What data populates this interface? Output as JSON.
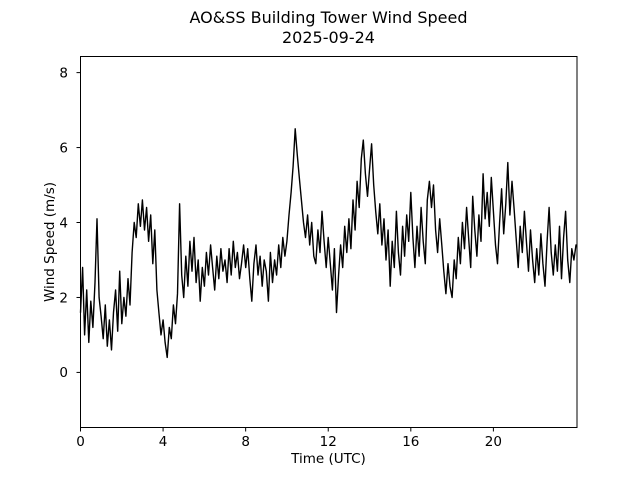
{
  "background": "#ffffff",
  "chart_data": {
    "type": "line",
    "title": "AO&SS Building Tower Wind Speed",
    "subtitle": "2025-09-24",
    "xlabel": "Time (UTC)",
    "ylabel": "Wind Speed (m/s)",
    "xlim": [
      0,
      24.05
    ],
    "ylim": [
      -1.47,
      8.43
    ],
    "xticks": [
      0,
      4,
      8,
      12,
      16,
      20
    ],
    "yticks": [
      0,
      2,
      4,
      6,
      8
    ],
    "grid": false,
    "legend": null,
    "line_color": "#000000",
    "series_name": "wind-speed",
    "x_start": 0,
    "x_step": 0.1,
    "x_units": "hours UTC",
    "y_units": "m/s",
    "values": [
      1.6,
      2.8,
      1.0,
      2.2,
      0.8,
      1.9,
      1.2,
      2.4,
      4.1,
      2.0,
      1.5,
      0.9,
      1.8,
      0.7,
      1.4,
      0.6,
      1.6,
      2.2,
      1.1,
      2.7,
      1.3,
      2.0,
      1.5,
      2.5,
      1.8,
      3.2,
      4.0,
      3.6,
      4.5,
      3.9,
      4.6,
      3.8,
      4.4,
      3.5,
      4.2,
      2.9,
      3.8,
      2.2,
      1.6,
      1.0,
      1.4,
      0.8,
      0.4,
      1.2,
      0.9,
      1.8,
      1.3,
      2.1,
      4.5,
      2.6,
      2.0,
      3.1,
      2.3,
      3.5,
      2.7,
      3.6,
      2.4,
      3.0,
      1.9,
      2.8,
      2.3,
      3.2,
      2.6,
      3.4,
      2.8,
      2.2,
      3.1,
      2.5,
      3.3,
      2.7,
      3.0,
      2.4,
      3.3,
      2.6,
      3.5,
      2.8,
      3.2,
      2.5,
      2.9,
      3.4,
      2.8,
      3.3,
      2.5,
      1.9,
      2.9,
      3.4,
      2.6,
      3.1,
      2.3,
      3.0,
      2.7,
      1.9,
      3.2,
      2.4,
      3.0,
      2.6,
      3.4,
      2.8,
      3.6,
      3.1,
      3.5,
      4.2,
      4.8,
      5.5,
      6.5,
      5.8,
      5.2,
      4.6,
      4.0,
      3.6,
      4.2,
      3.4,
      4.0,
      3.1,
      2.9,
      3.8,
      3.2,
      4.3,
      3.5,
      2.8,
      3.6,
      2.9,
      2.2,
      3.3,
      1.6,
      2.6,
      3.4,
      2.8,
      3.9,
      3.2,
      4.1,
      3.3,
      4.6,
      3.8,
      5.1,
      4.4,
      5.7,
      6.2,
      5.3,
      4.7,
      5.4,
      6.1,
      5.0,
      4.3,
      3.7,
      4.5,
      3.4,
      4.1,
      3.0,
      3.8,
      2.3,
      3.5,
      2.8,
      4.3,
      3.2,
      2.6,
      3.9,
      3.1,
      4.2,
      3.5,
      4.8,
      3.6,
      2.8,
      3.9,
      3.1,
      4.4,
      3.5,
      2.9,
      4.6,
      5.1,
      4.4,
      5.0,
      3.8,
      3.2,
      4.1,
      3.4,
      2.7,
      2.1,
      2.9,
      2.3,
      2.0,
      3.0,
      2.5,
      3.6,
      2.9,
      4.0,
      3.3,
      4.4,
      3.6,
      2.8,
      4.7,
      3.8,
      3.1,
      4.2,
      3.5,
      5.3,
      4.1,
      4.8,
      3.9,
      5.2,
      4.3,
      3.4,
      2.9,
      4.0,
      4.9,
      3.7,
      4.5,
      5.6,
      4.2,
      5.1,
      4.4,
      3.6,
      2.8,
      3.9,
      3.2,
      4.3,
      3.5,
      2.7,
      3.8,
      3.0,
      2.4,
      3.3,
      2.6,
      3.7,
      2.9,
      2.3,
      3.5,
      4.4,
      3.2,
      2.6,
      3.4,
      2.7,
      3.9,
      2.5,
      3.6,
      4.3,
      3.0,
      2.4,
      3.3,
      3.0,
      3.4
    ]
  }
}
